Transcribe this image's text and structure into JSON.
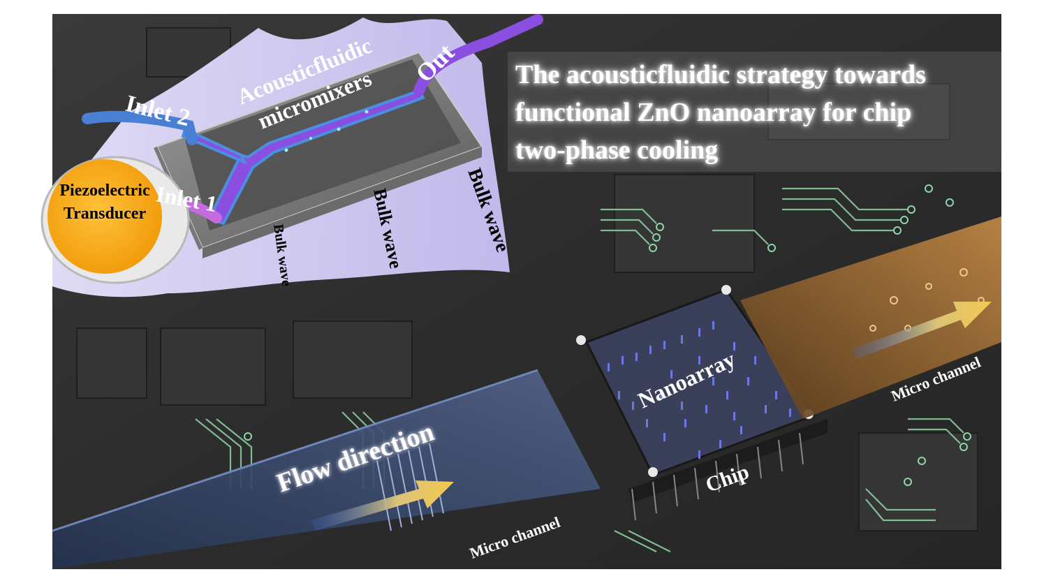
{
  "title": {
    "line1": "The acousticfluidic strategy towards",
    "line2": "functional ZnO nanoarray for chip",
    "line3": "two-phase cooling"
  },
  "labels": {
    "micromixers_line1": "Acousticfluidic",
    "micromixers_line2": "micromixers",
    "inlet2": "Inlet 2",
    "inlet1": "Inlet 1",
    "out": "Out",
    "transducer_line1": "Piezoelectric",
    "transducer_line2": "Transducer",
    "bulk_wave_1": "Bulk wave",
    "bulk_wave_2": "Bulk wave",
    "bulk_wave_3": "Bulk wave",
    "nanoarray": "Nanoarray",
    "chip": "Chip",
    "flow_direction": "Flow direction",
    "micro_channel_left": "Micro channel",
    "micro_channel_right": "Micro channel"
  },
  "colors": {
    "board": "#2e2e2e",
    "circuit_trace": "#8fd6a8",
    "wave_fan": "#cfc8f5",
    "inlet2_tube": "#4a7fd6",
    "inlet1_tube": "#c56be0",
    "channel_purple": "#8a4fe0",
    "transducer": "#f5a511",
    "nanoarray": "#6a78e0",
    "outlet_channel": "#b97a33",
    "inlet_channel": "#3b4f7a",
    "arrow": "#f0c75a"
  }
}
